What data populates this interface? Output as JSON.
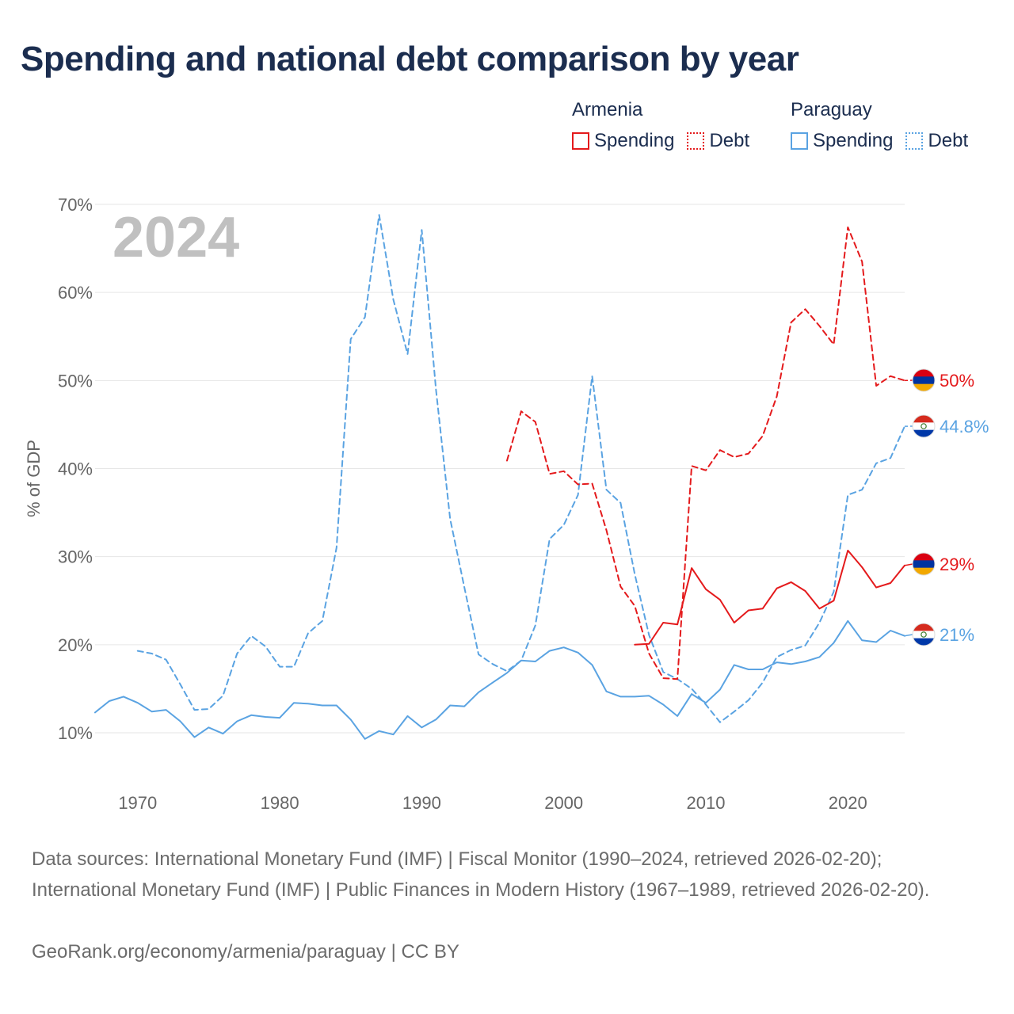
{
  "title": "Spending and national debt comparison by year",
  "legend": {
    "groups": [
      {
        "name": "Armenia",
        "color": "#e41a1c",
        "items": [
          {
            "label": "Spending",
            "style": "solid"
          },
          {
            "label": "Debt",
            "style": "dotted"
          }
        ]
      },
      {
        "name": "Paraguay",
        "color": "#5aa3e2",
        "items": [
          {
            "label": "Spending",
            "style": "solid"
          },
          {
            "label": "Debt",
            "style": "dotted"
          }
        ]
      }
    ]
  },
  "chart_data": {
    "type": "line",
    "year_label": "2024",
    "ylabel": "% of GDP",
    "ylim": [
      10,
      70
    ],
    "xlim": [
      1967,
      2024
    ],
    "yticks": [
      10,
      20,
      30,
      40,
      50,
      60,
      70
    ],
    "ytick_labels": [
      "10%",
      "20%",
      "30%",
      "40%",
      "50%",
      "60%",
      "70%"
    ],
    "xticks": [
      1970,
      1980,
      1990,
      2000,
      2010,
      2020
    ],
    "xtick_labels": [
      "1970",
      "1980",
      "1990",
      "2000",
      "2010",
      "2020"
    ],
    "grid": true,
    "series": [
      {
        "name": "Paraguay Debt",
        "country": "Paraguay",
        "metric": "Debt",
        "color": "#5aa3e2",
        "dash": "dashed",
        "end_label": "44.8%",
        "x": [
          1970,
          1971,
          1972,
          1973,
          1974,
          1975,
          1976,
          1977,
          1978,
          1979,
          1980,
          1981,
          1982,
          1983,
          1984,
          1985,
          1986,
          1987,
          1988,
          1989,
          1990,
          1991,
          1992,
          1993,
          1994,
          1995,
          1996,
          1997,
          1998,
          1999,
          2000,
          2001,
          2002,
          2003,
          2004,
          2005,
          2006,
          2007,
          2008,
          2009,
          2010,
          2011,
          2012,
          2013,
          2014,
          2015,
          2016,
          2017,
          2018,
          2019,
          2020,
          2021,
          2022,
          2023,
          2024
        ],
        "y": [
          19.3,
          19,
          18.3,
          15.5,
          12.6,
          12.7,
          14.2,
          19,
          21,
          19.8,
          17.5,
          17.5,
          21.3,
          22.7,
          31,
          54.7,
          57.2,
          68.8,
          59.2,
          53,
          67.1,
          49,
          34.3,
          26.5,
          18.9,
          17.8,
          17,
          18.2,
          22.2,
          32,
          33.6,
          37,
          50.5,
          37.6,
          36.1,
          28,
          21.1,
          16.9,
          16.1,
          15,
          13.2,
          11.2,
          12.4,
          13.7,
          15.7,
          18.6,
          19.4,
          19.9,
          22.5,
          26,
          37,
          37.6,
          40.6,
          41.2,
          44.8
        ]
      },
      {
        "name": "Paraguay Spending",
        "country": "Paraguay",
        "metric": "Spending",
        "color": "#5aa3e2",
        "dash": "solid",
        "end_label": "21%",
        "x": [
          1967,
          1968,
          1969,
          1970,
          1971,
          1972,
          1973,
          1974,
          1975,
          1976,
          1977,
          1978,
          1979,
          1980,
          1981,
          1982,
          1983,
          1984,
          1985,
          1986,
          1987,
          1988,
          1989,
          1990,
          1991,
          1992,
          1993,
          1994,
          1995,
          1996,
          1997,
          1998,
          1999,
          2000,
          2001,
          2002,
          2003,
          2004,
          2005,
          2006,
          2007,
          2008,
          2009,
          2010,
          2011,
          2012,
          2013,
          2014,
          2015,
          2016,
          2017,
          2018,
          2019,
          2020,
          2021,
          2022,
          2023,
          2024
        ],
        "y": [
          12.3,
          13.6,
          14.1,
          13.4,
          12.4,
          12.6,
          11.3,
          9.5,
          10.6,
          9.9,
          11.3,
          12,
          11.8,
          11.7,
          13.4,
          13.3,
          13.1,
          13.1,
          11.5,
          9.3,
          10.2,
          9.8,
          11.9,
          10.6,
          11.5,
          13.1,
          13,
          14.6,
          15.7,
          16.8,
          18.2,
          18.1,
          19.3,
          19.7,
          19.1,
          17.7,
          14.7,
          14.1,
          14.1,
          14.2,
          13.2,
          11.9,
          14.4,
          13.4,
          14.9,
          17.7,
          17.2,
          17.2,
          18,
          17.8,
          18.1,
          18.6,
          20.2,
          22.7,
          20.5,
          20.3,
          21.6,
          21
        ]
      },
      {
        "name": "Armenia Debt",
        "country": "Armenia",
        "metric": "Debt",
        "color": "#e41a1c",
        "dash": "dashed",
        "end_label": "50%",
        "x": [
          1996,
          1997,
          1998,
          1999,
          2000,
          2001,
          2002,
          2003,
          2004,
          2005,
          2006,
          2007,
          2008,
          2009,
          2010,
          2011,
          2012,
          2013,
          2014,
          2015,
          2016,
          2017,
          2018,
          2019,
          2020,
          2021,
          2022,
          2023,
          2024
        ],
        "y": [
          40.9,
          46.5,
          45.3,
          39.4,
          39.7,
          38.2,
          38.3,
          33,
          26.6,
          24.4,
          19,
          16.2,
          16.1,
          40.3,
          39.8,
          42.1,
          41.3,
          41.7,
          43.7,
          48.2,
          56.6,
          58.1,
          56.2,
          54.1,
          67.4,
          63.5,
          49.4,
          50.5,
          50
        ]
      },
      {
        "name": "Armenia Spending",
        "country": "Armenia",
        "metric": "Spending",
        "color": "#e41a1c",
        "dash": "solid",
        "end_label": "29%",
        "x": [
          2005,
          2006,
          2007,
          2008,
          2009,
          2010,
          2011,
          2012,
          2013,
          2014,
          2015,
          2016,
          2017,
          2018,
          2019,
          2020,
          2021,
          2022,
          2023,
          2024
        ],
        "y": [
          20,
          20.1,
          22.5,
          22.3,
          28.7,
          26.3,
          25.1,
          22.5,
          23.9,
          24.1,
          26.4,
          27.1,
          26.1,
          24.1,
          25,
          30.7,
          28.8,
          26.5,
          27,
          29
        ]
      }
    ]
  },
  "source_text": "Data sources: International Monetary Fund (IMF) | Fiscal Monitor (1990–2024, retrieved 2026-02-20); International Monetary Fund (IMF) | Public Finances in Modern History (1967–1989, retrieved 2026-02-20).",
  "credit_text": "GeoRank.org/economy/armenia/paraguay | CC BY"
}
